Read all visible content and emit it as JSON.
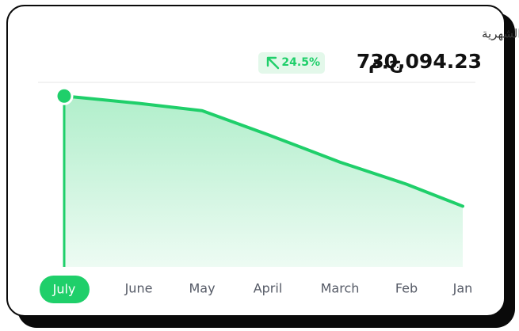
{
  "chart_data": {
    "type": "area",
    "title": "إجمالي المبيعات الشهرية",
    "total": "730,094.23",
    "currency": "ج.م",
    "change": "24.5%",
    "categories": [
      "July",
      "June",
      "May",
      "April",
      "March",
      "Feb",
      "Jan"
    ],
    "values": [
      93,
      89,
      85,
      72,
      57,
      45,
      33
    ],
    "ylim": [
      0,
      100
    ],
    "color": "#1fcf6a",
    "highlight": "July"
  }
}
